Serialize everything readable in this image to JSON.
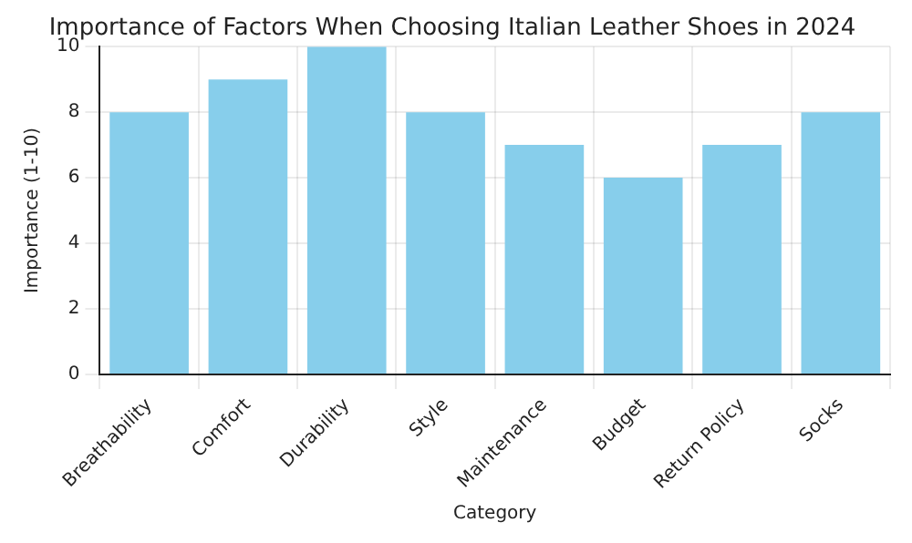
{
  "chart_data": {
    "type": "bar",
    "title": "Importance of Factors When Choosing Italian Leather Shoes in 2024",
    "xlabel": "Category",
    "ylabel": "Importance (1-10)",
    "categories": [
      "Breathability",
      "Comfort",
      "Durability",
      "Style",
      "Maintenance",
      "Budget",
      "Return Policy",
      "Socks"
    ],
    "values": [
      8,
      9,
      10,
      8,
      7,
      6,
      7,
      8
    ],
    "color": "#87ceeb",
    "ylim": [
      0,
      10
    ],
    "yticks": [
      0,
      2,
      4,
      6,
      8,
      10
    ],
    "grid": true
  }
}
